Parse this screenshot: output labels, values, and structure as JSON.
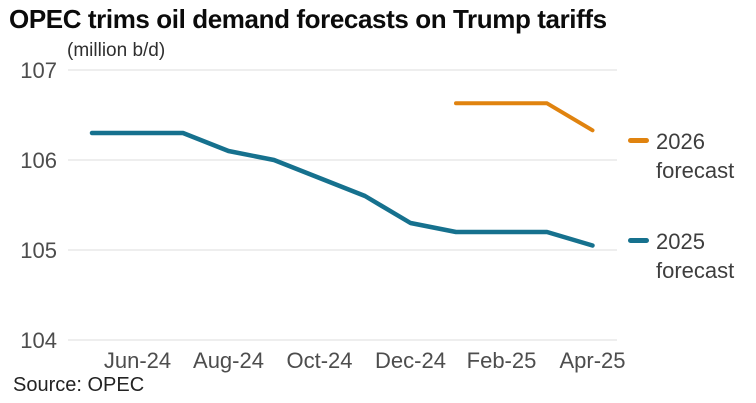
{
  "title": "OPEC trims oil demand forecasts on Trump tariffs",
  "subtitle": "(million b/d)",
  "source": "Source: OPEC",
  "colors": {
    "accent_orange": "#e0830f",
    "accent_teal": "#16718e",
    "grid": "#e3e3e3",
    "axis_text": "#4d4d4d",
    "title_text": "#0b0b0b",
    "legend_text": "#3e3e3e"
  },
  "legend": {
    "items": [
      {
        "line1": "2026",
        "line2": "forecast",
        "color": "#e0830f"
      },
      {
        "line1": "2025",
        "line2": "forecast",
        "color": "#16718e"
      }
    ]
  },
  "chart_data": {
    "type": "line",
    "title": "OPEC trims oil demand forecasts on Trump tariffs",
    "unit_label": "(million b/d)",
    "xlabel": "",
    "ylabel": "million b/d",
    "ylim": [
      104,
      107
    ],
    "y_ticks": [
      107,
      106,
      105,
      104
    ],
    "x": [
      "May-24",
      "Jun-24",
      "Jul-24",
      "Aug-24",
      "Sep-24",
      "Oct-24",
      "Nov-24",
      "Dec-24",
      "Jan-25",
      "Feb-25",
      "Mar-25",
      "Apr-25"
    ],
    "x_tick_labels": [
      "Jun-24",
      "Aug-24",
      "Oct-24",
      "Dec-24",
      "Feb-25",
      "Apr-25"
    ],
    "x_tick_indices": [
      1,
      3,
      5,
      7,
      9,
      11
    ],
    "grid": "horizontal",
    "legend_position": "right",
    "series": [
      {
        "name": "2026 forecast",
        "color": "#e0830f",
        "stroke_width": 4,
        "values": [
          null,
          null,
          null,
          null,
          null,
          null,
          null,
          null,
          106.63,
          106.63,
          106.63,
          106.33
        ]
      },
      {
        "name": "2025 forecast",
        "color": "#16718e",
        "stroke_width": 4.5,
        "values": [
          106.3,
          106.3,
          106.3,
          106.1,
          106.0,
          105.8,
          105.6,
          105.3,
          105.2,
          105.2,
          105.2,
          105.05
        ]
      }
    ],
    "source": "Source: OPEC"
  }
}
